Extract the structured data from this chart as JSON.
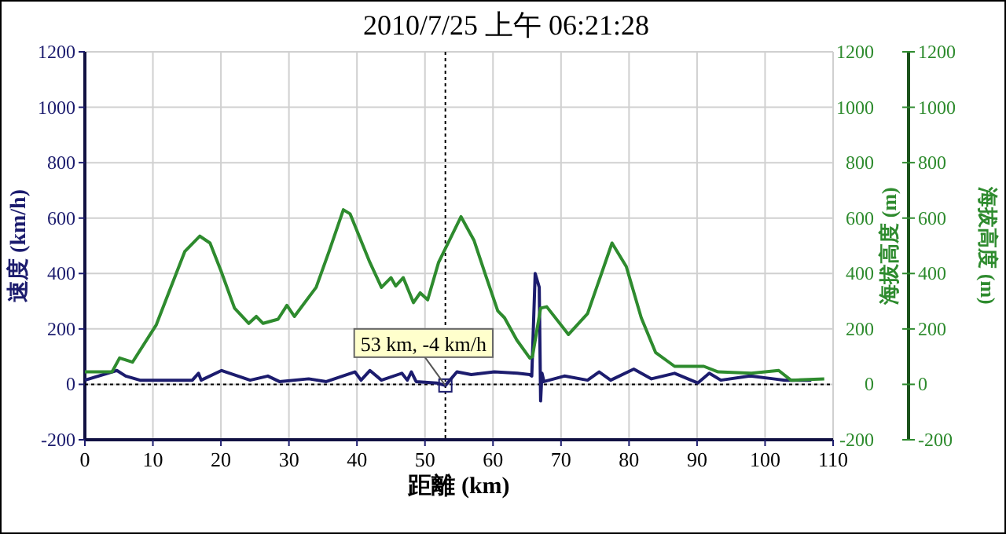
{
  "chart_data": {
    "type": "line",
    "title": "2010/7/25 上午 06:21:28",
    "xlabel": "距離 (km)",
    "ylabel": "速度 (km/h)",
    "y2label": "海拔高度 (m)",
    "y3label": "海拔高度 (m)",
    "xlim": [
      0,
      110
    ],
    "xticks": [
      0,
      10,
      20,
      30,
      40,
      50,
      60,
      70,
      80,
      90,
      100,
      110
    ],
    "ylim": [
      -200,
      1200
    ],
    "yticks": [
      -200,
      0,
      200,
      400,
      600,
      800,
      1000,
      1200
    ],
    "y2lim": [
      -200,
      1200
    ],
    "y2ticks": [
      -200,
      0,
      200,
      400,
      600,
      800,
      1000,
      1200
    ],
    "y3lim": [
      -200,
      1200
    ],
    "y3ticks": [
      -200,
      0,
      200,
      400,
      600,
      800,
      1000,
      1200
    ],
    "grid": true,
    "line_style": "solid",
    "ref_lines": [
      {
        "axis": "x",
        "value": 53,
        "color": "#000000",
        "line_style": "dotted"
      },
      {
        "axis": "y",
        "value": 0,
        "color": "#000000",
        "line_style": "dotted"
      }
    ],
    "annotations": [
      {
        "text": "53 km, -4 km/h",
        "x": 53,
        "y": -4
      }
    ],
    "series": [
      {
        "color": "#1c1c6e",
        "x": [
          0,
          4.7,
          6,
          8.1,
          15.8,
          16.7,
          17.1,
          20.1,
          24.3,
          26.9,
          28.6,
          32.9,
          35.5,
          39.7,
          40.6,
          41.9,
          43.6,
          46.6,
          47.4,
          48,
          48.7,
          51.7,
          53,
          54.7,
          56.8,
          60.2,
          63.6,
          65.4,
          65.7,
          66.2,
          66.8,
          67,
          67.2,
          67.5,
          70.5,
          73.9,
          75.6,
          77.3,
          80.7,
          83.3,
          86.7,
          90.1,
          91.8,
          93.5,
          97.8,
          101.2,
          102.9,
          106.8
        ],
        "values": [
          15,
          50,
          30,
          15,
          15,
          40,
          15,
          50,
          15,
          30,
          10,
          20,
          10,
          45,
          15,
          50,
          15,
          40,
          15,
          45,
          10,
          5,
          -4,
          45,
          35,
          45,
          40,
          35,
          30,
          400,
          350,
          -60,
          40,
          10,
          30,
          15,
          45,
          15,
          55,
          20,
          40,
          5,
          40,
          15,
          30,
          20,
          15,
          15
        ]
      },
      {
        "color": "#2e8b2e",
        "axis": "y2",
        "x": [
          0,
          4,
          5.1,
          7,
          10.5,
          12,
          14.7,
          16.9,
          18.4,
          20,
          22,
          24.1,
          25.2,
          26.2,
          28.4,
          29.7,
          30.8,
          34,
          35.9,
          38,
          39,
          41.9,
          43.6,
          45,
          45.7,
          46.8,
          48.3,
          49.3,
          50.4,
          52,
          55.3,
          57.2,
          58.9,
          60.7,
          61.7,
          63.5,
          65.4,
          65.8,
          67,
          67.9,
          71.1,
          73.9,
          77.5,
          79.6,
          81.8,
          83.9,
          86.7,
          91,
          93.1,
          98,
          102,
          103.8,
          108.7
        ],
        "values": [
          45,
          45,
          95,
          80,
          215,
          310,
          480,
          535,
          510,
          410,
          275,
          220,
          245,
          220,
          235,
          285,
          245,
          350,
          480,
          630,
          615,
          440,
          350,
          385,
          355,
          385,
          295,
          330,
          305,
          440,
          605,
          520,
          395,
          265,
          240,
          160,
          95,
          100,
          275,
          280,
          180,
          255,
          510,
          425,
          240,
          115,
          65,
          65,
          45,
          40,
          50,
          15,
          20
        ]
      }
    ]
  }
}
